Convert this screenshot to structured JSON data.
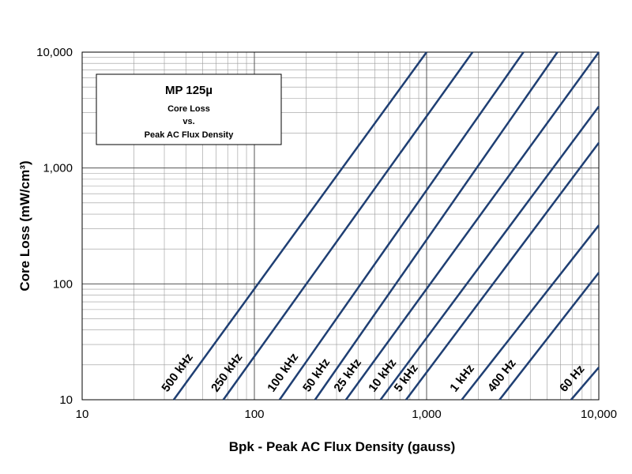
{
  "chart_data": {
    "type": "line",
    "title": "MP 125µ",
    "subtitle_lines": [
      "Core Loss",
      "vs.",
      "Peak AC Flux Density"
    ],
    "xlabel": "Bpk - Peak AC Flux Density (gauss)",
    "ylabel": "Core Loss (mW/cm³)",
    "x_scale": "log",
    "y_scale": "log",
    "xlim": [
      10,
      10000
    ],
    "ylim": [
      10,
      10000
    ],
    "x_ticks": [
      10,
      100,
      1000,
      10000
    ],
    "x_tick_labels": [
      "10",
      "100",
      "1,000",
      "10,000"
    ],
    "y_ticks": [
      10,
      100,
      1000,
      10000
    ],
    "y_tick_labels": [
      "10",
      "100",
      "1,000",
      "10,000"
    ],
    "grid": true,
    "line_color": "#1f3f73",
    "series": [
      {
        "name": "500 kHz",
        "x": [
          34,
          1000
        ],
        "y": [
          10,
          10000
        ]
      },
      {
        "name": "250 kHz",
        "x": [
          66,
          1850
        ],
        "y": [
          10,
          10000
        ]
      },
      {
        "name": "100 kHz",
        "x": [
          140,
          3650
        ],
        "y": [
          10,
          10000
        ]
      },
      {
        "name": "50 kHz",
        "x": [
          225,
          5750
        ],
        "y": [
          10,
          10000
        ]
      },
      {
        "name": "25 kHz",
        "x": [
          340,
          10000
        ],
        "y": [
          10,
          10000
        ]
      },
      {
        "name": "10 kHz",
        "x": [
          540,
          10000
        ],
        "y": [
          10,
          3400
        ]
      },
      {
        "name": "5 kHz",
        "x": [
          760,
          10000
        ],
        "y": [
          10,
          1650
        ]
      },
      {
        "name": "1 kHz",
        "x": [
          1600,
          10000
        ],
        "y": [
          10,
          320
        ]
      },
      {
        "name": "400 Hz",
        "x": [
          2650,
          10000
        ],
        "y": [
          10,
          125
        ]
      },
      {
        "name": "60 Hz",
        "x": [
          6900,
          10000
        ],
        "y": [
          10,
          19
        ]
      }
    ]
  }
}
